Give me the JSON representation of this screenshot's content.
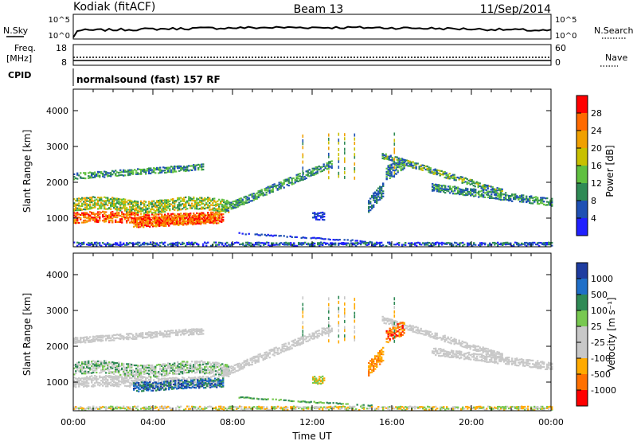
{
  "header": {
    "station": "Kodiak (fitACF)",
    "beam": "Beam 13",
    "date": "11/Sep/2014"
  },
  "top_panels": {
    "nsky_label": "N.Sky",
    "nsky_ticks": [
      "10^5",
      "10^0"
    ],
    "nsearch_label": "N.Search",
    "nsearch_ticks": [
      "10^5",
      "10^0"
    ],
    "freq_label_1": "Freq.",
    "freq_label_2": "[MHz]",
    "freq_ticks": [
      "18",
      "8"
    ],
    "nave_label": "Nave",
    "nave_ticks": [
      "60",
      "0"
    ],
    "cpid_label": "CPID",
    "cpid_text": "normalsound (fast) 157 RF"
  },
  "chart_data": [
    {
      "type": "heatmap",
      "name": "power-panel",
      "ylabel": "Slant Range [km]",
      "ylim": [
        200,
        4600
      ],
      "y_ticks": [
        "1000",
        "2000",
        "3000",
        "4000"
      ],
      "xlim_hours": [
        0,
        24
      ],
      "colorbar_label": "Power [dB]",
      "colorbar_ticks": [
        "4",
        "8",
        "12",
        "16",
        "20",
        "24",
        "28"
      ],
      "colorbar_colors": [
        "#2020ff",
        "#1e50b4",
        "#2f8a55",
        "#60c040",
        "#c8c000",
        "#f0a000",
        "#ff6a00",
        "#ff0000"
      ]
    },
    {
      "type": "heatmap",
      "name": "velocity-panel",
      "ylabel": "Slant Range [km]",
      "ylim": [
        200,
        4600
      ],
      "y_ticks": [
        "1000",
        "2000",
        "3000",
        "4000"
      ],
      "xlim_hours": [
        0,
        24
      ],
      "xlabel": "Time UT",
      "x_ticks": [
        "00:00",
        "04:00",
        "08:00",
        "12:00",
        "16:00",
        "20:00",
        "00:00"
      ],
      "colorbar_label": "Velocity [m s⁻¹]",
      "colorbar_ticks": [
        "1000",
        "500",
        "100",
        "25",
        "-25",
        "-100",
        "-500",
        "-1000"
      ],
      "colorbar_colors": [
        "#1e3ca0",
        "#1f6fc8",
        "#2f8a55",
        "#78c850",
        "#c8c8c8",
        "#c8c8c8",
        "#ffaa00",
        "#ff7000",
        "#ff0000"
      ]
    }
  ]
}
